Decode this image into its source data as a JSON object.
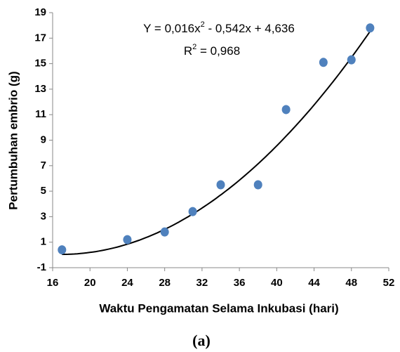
{
  "chart_data": {
    "type": "scatter",
    "x_label": "Waktu Pengamatan Selama Inkubasi (hari)",
    "y_label": "Pertumbuhan embrio (g)",
    "caption": "(a)",
    "equation": [
      "Y = 0,016x",
      "2",
      " - 0,542x + 4,636"
    ],
    "r_squared": [
      "R",
      "2",
      " = 0,968"
    ],
    "trendline_coefficients": [
      0.016,
      -0.542,
      4.636
    ],
    "trendline_color": "#000000",
    "color": "#4f81bd",
    "x": [
      17,
      24,
      28,
      31,
      34,
      38,
      41,
      45,
      48,
      50
    ],
    "values": [
      0.4,
      1.2,
      1.8,
      3.4,
      5.5,
      5.5,
      11.4,
      15.1,
      15.3,
      17.8
    ],
    "xlim": [
      16,
      52
    ],
    "xticks": [
      16,
      20,
      24,
      28,
      32,
      36,
      40,
      44,
      48,
      52
    ],
    "ylim": [
      -1,
      19
    ],
    "yticks": [
      -1,
      1,
      3,
      5,
      7,
      9,
      11,
      13,
      15,
      17,
      19
    ],
    "grid": false
  }
}
